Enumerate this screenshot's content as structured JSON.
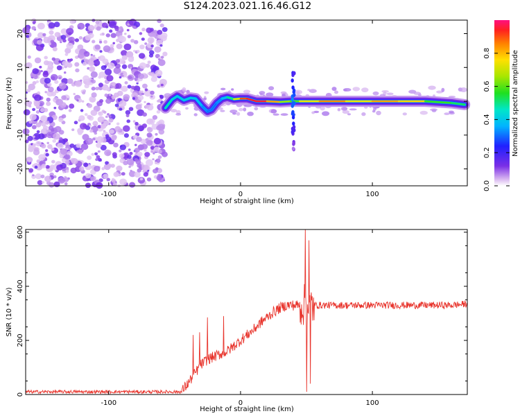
{
  "title": "S124.2023.021.16.46.G12",
  "chart_data": [
    {
      "type": "heatmap",
      "xlabel": "Height of straight line (km)",
      "ylabel": "Frequency (Hz)",
      "xlim": [
        -163,
        172
      ],
      "ylim": [
        -25,
        24
      ],
      "xticks": [
        -100,
        0,
        100
      ],
      "yticks": [
        -20,
        -10,
        0,
        10,
        20
      ],
      "colorbar": {
        "label": "Normalized spectral amplitude",
        "range": [
          0,
          1
        ],
        "ticks": [
          "0.0",
          "0.2",
          "0.4",
          "0.6",
          "0.8"
        ]
      },
      "noise_region_x": [
        -163,
        -57
      ],
      "ridge": {
        "x": [
          -57,
          -52,
          -48,
          -43,
          -38,
          -34,
          -29,
          -25,
          -22,
          -18,
          -14,
          -10,
          -5,
          0,
          5,
          12,
          20,
          30,
          38,
          45,
          60,
          80,
          100,
          120,
          140,
          160,
          170
        ],
        "frequency": [
          -2,
          0.5,
          1.5,
          0.3,
          1.0,
          0.8,
          -1.5,
          -3.0,
          -2.5,
          -0.5,
          0.8,
          1.2,
          0.6,
          0.8,
          0.8,
          0.0,
          0.0,
          -0.2,
          0.0,
          0.0,
          0.0,
          0.0,
          0.0,
          0.0,
          0.0,
          -0.5,
          -1.0
        ],
        "amplitude": [
          0.5,
          0.45,
          0.4,
          0.4,
          0.4,
          0.4,
          0.35,
          0.3,
          0.3,
          0.3,
          0.35,
          0.4,
          0.6,
          0.85,
          0.95,
          0.95,
          0.95,
          0.7,
          0.6,
          0.6,
          0.9,
          0.8,
          0.7,
          0.95,
          0.6,
          0.55,
          0.5
        ]
      },
      "spike": {
        "x": 40,
        "frequency_range": [
          -15,
          11
        ]
      }
    },
    {
      "type": "line",
      "xlabel": "Height of straight line (km)",
      "ylabel": "SNR (10 * v/v)",
      "xlim": [
        -163,
        172
      ],
      "ylim": [
        0,
        610
      ],
      "xticks": [
        -100,
        0,
        100
      ],
      "yticks": [
        0,
        200,
        400,
        600
      ],
      "color": "#e8332b",
      "series": [
        {
          "x": [
            -163,
            -45,
            -40,
            -30,
            -25,
            -20,
            -15,
            -10,
            -5,
            0,
            5,
            10,
            15,
            20,
            25,
            30,
            35,
            40,
            45,
            50,
            55,
            60,
            70,
            80,
            100,
            120,
            140,
            160,
            172
          ],
          "y": [
            10,
            10,
            40,
            110,
            130,
            140,
            150,
            160,
            180,
            200,
            220,
            240,
            265,
            285,
            305,
            320,
            330,
            330,
            330,
            330,
            330,
            330,
            330,
            330,
            330,
            330,
            330,
            330,
            335
          ]
        }
      ],
      "spikes": [
        {
          "x": -36,
          "y": 220
        },
        {
          "x": -31,
          "y": 230
        },
        {
          "x": -25,
          "y": 285
        },
        {
          "x": -13,
          "y": 290
        },
        {
          "x": 49,
          "y": 610
        },
        {
          "x": 50,
          "y": 10
        },
        {
          "x": 52,
          "y": 570
        },
        {
          "x": 53,
          "y": 40
        }
      ]
    }
  ]
}
